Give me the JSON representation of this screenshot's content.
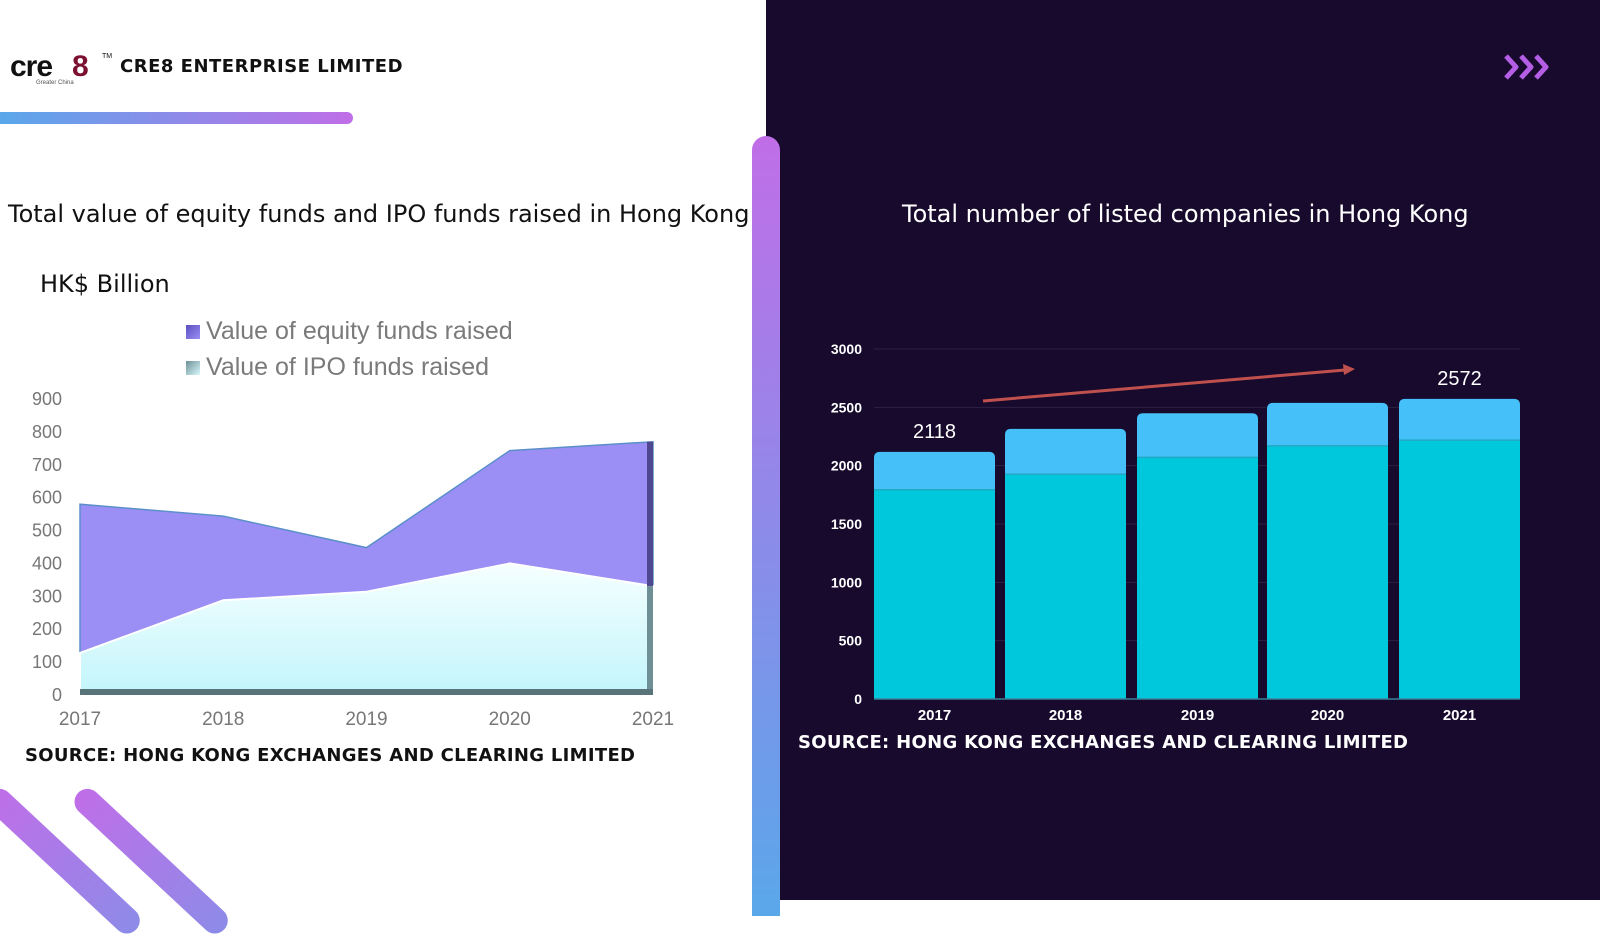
{
  "header": {
    "company": "CRE8 ENTERPRISE LIMITED",
    "logo_text": "cre8",
    "logo_tm": "TM",
    "logo_sub": "Greater China"
  },
  "colors": {
    "equity": "#9b8ff5",
    "ipo": "#d8fbff",
    "bar_main": "#00c8dc",
    "bar_top": "#46c0f8",
    "dark_bg": "#170a2c",
    "accent_gradient": [
      "#5aa7ea",
      "#c06ee8"
    ],
    "arrow": "#c0504d"
  },
  "icons": {
    "chevrons": "triple-chevron-right-icon"
  },
  "chart_data": [
    {
      "type": "area",
      "title": "Total value of equity funds and IPO funds raised in Hong Kong",
      "ylabel": "HK$ Billion",
      "categories": [
        "2017",
        "2018",
        "2019",
        "2020",
        "2021"
      ],
      "ylim": [
        0,
        900
      ],
      "yticks": [
        "0",
        "100",
        "200",
        "300",
        "400",
        "500",
        "600",
        "700",
        "800",
        "900"
      ],
      "legend_placement": "top",
      "series": [
        {
          "name": "Value of equity funds raised",
          "values": [
            580,
            544,
            448,
            743,
            770
          ]
        },
        {
          "name": "Value of IPO funds raised",
          "values": [
            128,
            288,
            314,
            400,
            331
          ]
        }
      ],
      "source": "SOURCE: HONG KONG EXCHANGES AND CLEARING LIMITED"
    },
    {
      "type": "bar",
      "stacked": true,
      "title": "Total number of listed companies in Hong Kong",
      "categories": [
        "2017",
        "2018",
        "2019",
        "2020",
        "2021"
      ],
      "ylim": [
        0,
        3000
      ],
      "yticks": [
        "0",
        "500",
        "1000",
        "1500",
        "2000",
        "2500",
        "3000"
      ],
      "grid": true,
      "series": [
        {
          "values": [
            1794,
            1926,
            2071,
            2170,
            2219
          ]
        },
        {
          "values": [
            324,
            389,
            378,
            368,
            353
          ]
        }
      ],
      "totals": [
        2118,
        2315,
        2449,
        2538,
        2572
      ],
      "data_labels": {
        "2017": "2118",
        "2021": "2572"
      },
      "annotation": "upward trend arrow",
      "source": "SOURCE: HONG KONG EXCHANGES AND CLEARING LIMITED"
    }
  ]
}
